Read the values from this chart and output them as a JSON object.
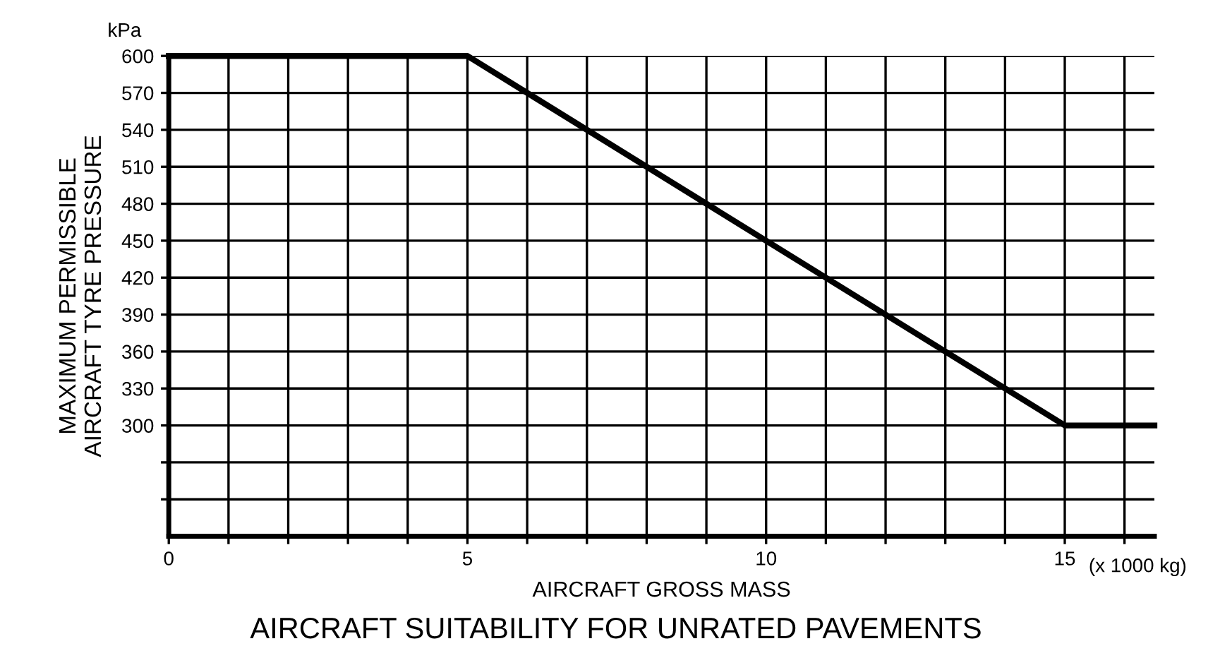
{
  "chart_data": {
    "type": "line",
    "title": "AIRCRAFT SUITABILITY FOR UNRATED PAVEMENTS",
    "xlabel": "AIRCRAFT GROSS MASS",
    "ylabel": "MAXIMUM PERMISSIBLE\nAIRCRAFT TYRE PRESSURE",
    "annotations": [
      "kPa",
      "(x 1000 kg)"
    ],
    "x": [
      0,
      5,
      15,
      16.5
    ],
    "series": [
      {
        "color": "#000000",
        "values": [
          600,
          600,
          300,
          300
        ]
      }
    ],
    "xlim": [
      0,
      16.5
    ],
    "ylim": [
      210,
      600
    ],
    "xticks": [
      0,
      {
        "value": 1,
        "label": null
      },
      {
        "value": 2,
        "label": null
      },
      {
        "value": 3,
        "label": null
      },
      {
        "value": 4,
        "label": null
      },
      5,
      {
        "value": 6,
        "label": null
      },
      {
        "value": 7,
        "label": null
      },
      {
        "value": 8,
        "label": null
      },
      {
        "value": 9,
        "label": null
      },
      10,
      {
        "value": 11,
        "label": null
      },
      {
        "value": 12,
        "label": null
      },
      {
        "value": 13,
        "label": null
      },
      {
        "value": 14,
        "label": null
      },
      15,
      {
        "value": 16,
        "label": null
      }
    ],
    "yticks": [
      {
        "value": 240,
        "label": null
      },
      {
        "value": 270,
        "label": null
      },
      300,
      330,
      360,
      390,
      420,
      450,
      480,
      510,
      540,
      570,
      600
    ],
    "grid": true,
    "legend": false,
    "marker": "none",
    "line_style": "solid"
  }
}
